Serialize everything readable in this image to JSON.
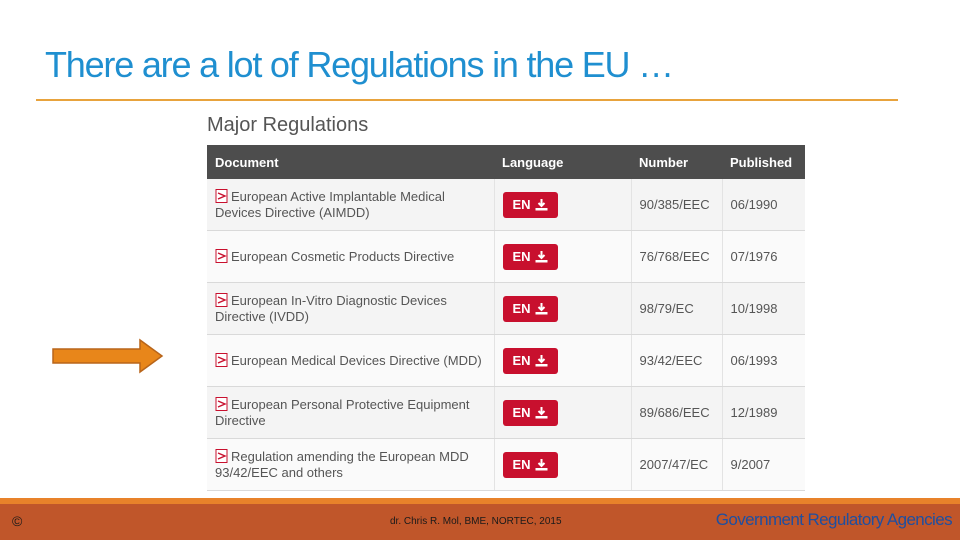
{
  "slide": {
    "title": "There are a lot of Regulations in the EU …"
  },
  "panel": {
    "heading": "Major Regulations",
    "columns": [
      "Document",
      "Language",
      "Number",
      "Published"
    ],
    "rows": [
      {
        "document": "European Active Implantable Medical Devices Directive (AIMDD)",
        "language": "EN",
        "number": "90/385/EEC",
        "published": "06/1990"
      },
      {
        "document": "European Cosmetic Products Directive",
        "language": "EN",
        "number": "76/768/EEC",
        "published": "07/1976"
      },
      {
        "document": "European In-Vitro Diagnostic Devices Directive (IVDD)",
        "language": "EN",
        "number": "98/79/EC",
        "published": "10/1998"
      },
      {
        "document": "European Medical Devices Directive (MDD)",
        "language": "EN",
        "number": "93/42/EEC",
        "published": "06/1993"
      },
      {
        "document": "European Personal Protective Equipment Directive",
        "language": "EN",
        "number": "89/686/EEC",
        "published": "12/1989"
      },
      {
        "document": "Regulation amending the European MDD 93/42/EEC and others",
        "language": "EN",
        "number": "2007/47/EC",
        "published": "9/2007"
      }
    ]
  },
  "footer": {
    "copyright": "©",
    "credit": "dr. Chris R. Mol, BME, NORTEC, 2015",
    "brand": "Government Regulatory Agencies"
  },
  "colors": {
    "title": "#1f8fd0",
    "rule": "#e8a33d",
    "header_bg": "#4d4d4d",
    "button": "#c8102e",
    "arrow": "#e8861a",
    "footer": "#c0562a"
  },
  "icons": {
    "document": "pdf-icon",
    "download": "download-icon",
    "pointer": "arrow-right-icon"
  }
}
